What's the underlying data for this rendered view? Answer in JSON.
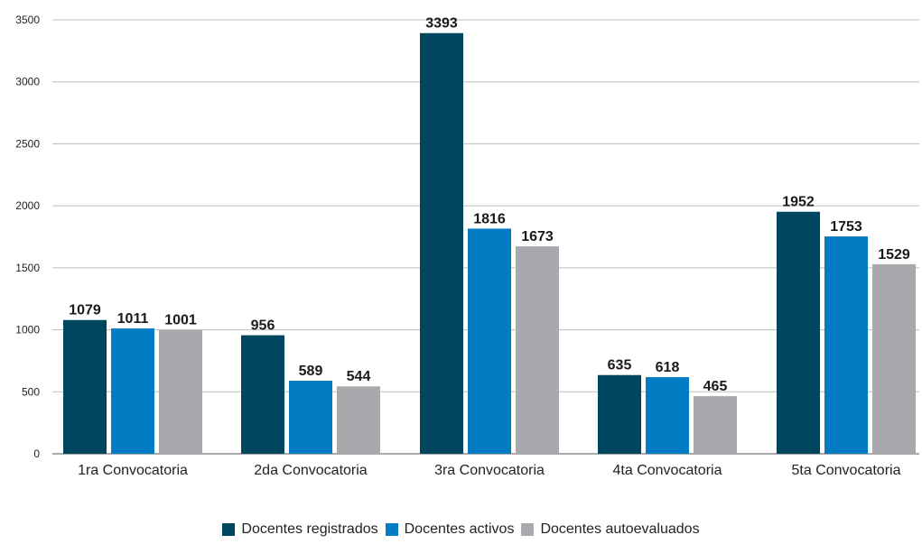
{
  "chart_data": {
    "type": "bar",
    "categories": [
      "1ra Convocatoria",
      "2da Convocatoria",
      "3ra Convocatoria",
      "4ta Convocatoria",
      "5ta Convocatoria"
    ],
    "series": [
      {
        "name": "Docentes registrados",
        "color": "#01465f",
        "values": [
          1079,
          956,
          3393,
          635,
          1952
        ]
      },
      {
        "name": "Docentes activos",
        "color": "#037cc3",
        "values": [
          1011,
          589,
          1816,
          618,
          1753
        ]
      },
      {
        "name": "Docentes autoevaluados",
        "color": "#a8a9ad",
        "values": [
          1001,
          544,
          1673,
          465,
          1529
        ]
      }
    ],
    "yticks": [
      0,
      500,
      1000,
      1500,
      2000,
      2500,
      3000,
      3500
    ],
    "ylim": [
      0,
      3500
    ],
    "grid": true,
    "legend_position": "bottom-center",
    "data_labels": true
  }
}
